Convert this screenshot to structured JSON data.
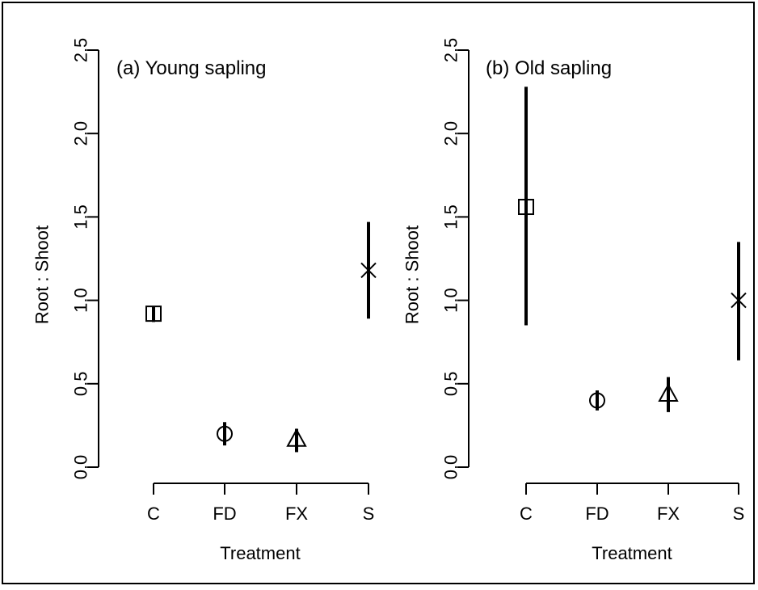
{
  "chart_data": [
    {
      "type": "scatter",
      "panel_label": "(a) Young sapling",
      "xlabel": "Treatment",
      "ylabel": "Root : Shoot",
      "categories": [
        "C",
        "FD",
        "FX",
        "S"
      ],
      "yticks": [
        "0.0",
        "0.5",
        "1.0",
        "1.5",
        "2.0",
        "2.5"
      ],
      "ylim": [
        0,
        2.5
      ],
      "values": [
        0.92,
        0.2,
        0.17,
        1.18
      ],
      "error_low": [
        0.87,
        0.13,
        0.09,
        0.89
      ],
      "error_high": [
        0.96,
        0.27,
        0.23,
        1.47
      ],
      "markers": [
        "square",
        "circle",
        "triangle",
        "cross"
      ]
    },
    {
      "type": "scatter",
      "panel_label": "(b) Old sapling",
      "xlabel": "Treatment",
      "ylabel": "Root : Shoot",
      "categories": [
        "C",
        "FD",
        "FX",
        "S"
      ],
      "yticks": [
        "0.0",
        "0.5",
        "1.0",
        "1.5",
        "2.0",
        "2.5"
      ],
      "ylim": [
        0,
        2.5
      ],
      "values": [
        1.56,
        0.4,
        0.44,
        1.0
      ],
      "error_low": [
        0.85,
        0.34,
        0.33,
        0.64
      ],
      "error_high": [
        2.28,
        0.46,
        0.54,
        1.35
      ],
      "markers": [
        "square",
        "circle",
        "triangle",
        "cross"
      ]
    }
  ]
}
